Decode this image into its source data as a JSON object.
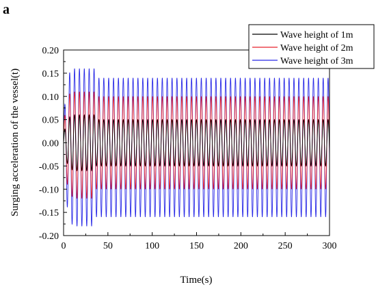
{
  "panel_label": "a",
  "chart_data": {
    "type": "line",
    "title": "",
    "xlabel": "Time(s)",
    "ylabel": "Surging acceleration of the vessel(t)",
    "xlim": [
      0,
      300
    ],
    "ylim": [
      -0.2,
      0.2
    ],
    "xticks": [
      0,
      50,
      100,
      150,
      200,
      250,
      300
    ],
    "yticks": [
      -0.2,
      -0.15,
      -0.1,
      -0.05,
      0.0,
      0.05,
      0.1,
      0.15,
      0.2
    ],
    "xtick_labels": [
      "0",
      "50",
      "100",
      "150",
      "200",
      "250",
      "300"
    ],
    "ytick_labels": [
      "-0.20",
      "-0.15",
      "-0.10",
      "-0.05",
      "0.00",
      "0.05",
      "0.10",
      "0.15",
      "0.20"
    ],
    "grid": false,
    "legend_position": "top-right",
    "period_s": 5.5,
    "series": [
      {
        "name": "Wave height of 1m",
        "color": "#000000",
        "steady_amplitude": 0.05,
        "transient_peak": 0.06,
        "transient_trough": -0.06
      },
      {
        "name": "Wave height of 2m",
        "color": "#e8212a",
        "steady_amplitude": 0.1,
        "transient_peak": 0.11,
        "transient_trough": -0.12
      },
      {
        "name": "Wave height of 3m",
        "color": "#2828e6",
        "steady_amplitude": 0.14,
        "steady_min": -0.16,
        "transient_peak": 0.16,
        "transient_trough": -0.18
      }
    ]
  }
}
